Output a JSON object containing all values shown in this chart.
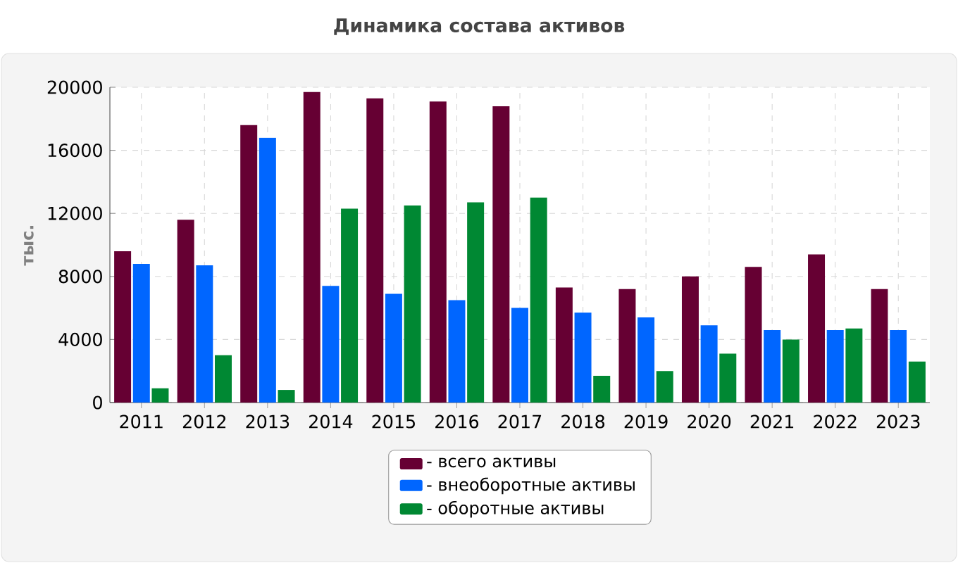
{
  "chart_data": {
    "type": "bar",
    "title": "Динамика состава активов",
    "ylabel": "тыс.",
    "categories": [
      "2011",
      "2012",
      "2013",
      "2014",
      "2015",
      "2016",
      "2017",
      "2018",
      "2019",
      "2020",
      "2021",
      "2022",
      "2023"
    ],
    "series": [
      {
        "name": "- всего активы",
        "color": "#660033",
        "values": [
          9600,
          11600,
          17600,
          19700,
          19300,
          19100,
          18800,
          7300,
          7200,
          8000,
          8600,
          9400,
          7200
        ]
      },
      {
        "name": "- внеоборотные активы",
        "color": "#0066ff",
        "values": [
          8800,
          8700,
          16800,
          7400,
          6900,
          6500,
          6000,
          5700,
          5400,
          4900,
          4600,
          4600,
          4600
        ]
      },
      {
        "name": "- оборотные активы",
        "color": "#008833",
        "values": [
          900,
          3000,
          800,
          12300,
          12500,
          12700,
          13000,
          1700,
          2000,
          3100,
          4000,
          4700,
          2600
        ]
      }
    ],
    "ylim": [
      0,
      20000
    ],
    "yticks": [
      0,
      4000,
      8000,
      12000,
      16000,
      20000
    ],
    "grid": true,
    "legend": "bottom"
  }
}
